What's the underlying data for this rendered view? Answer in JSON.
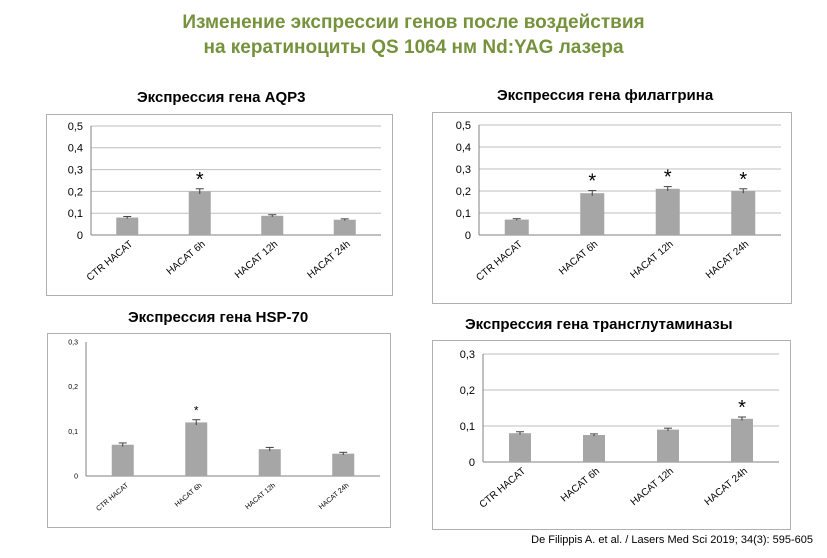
{
  "title_line1": "Изменение экспрессии генов после воздействия",
  "title_line2": "на кератиноциты QS 1064 нм Nd:YAG лазера",
  "citation": "De Filippis A. et al. / Lasers Med Sci 2019; 34(3): 595-605",
  "colors": {
    "title": "#76923c",
    "bar": "#a6a6a6",
    "grid": "#bfbfbf"
  },
  "chart_data": [
    {
      "type": "bar",
      "title": "Экспрессия гена AQP3",
      "categories": [
        "CTR HACAT",
        "HACAT 6h",
        "HACAT 12h",
        "HACAT 24h"
      ],
      "values": [
        0.08,
        0.2,
        0.088,
        0.07
      ],
      "errors": [
        0.005,
        0.012,
        0.005,
        0.004
      ],
      "significance": [
        "",
        "*",
        "",
        ""
      ],
      "yticks": [
        "0",
        "0,1",
        "0,2",
        "0,3",
        "0,4",
        "0,5"
      ],
      "ylim": [
        0,
        0.5
      ],
      "grid": true,
      "xlabel": "",
      "ylabel": ""
    },
    {
      "type": "bar",
      "title": "Экспрессия гена филаггрина",
      "categories": [
        "CTR HACAT",
        "HACAT 6h",
        "HACAT 12h",
        "HACAT 24h"
      ],
      "values": [
        0.07,
        0.19,
        0.21,
        0.2
      ],
      "errors": [
        0.004,
        0.012,
        0.01,
        0.01
      ],
      "significance": [
        "",
        "*",
        "*",
        "*"
      ],
      "yticks": [
        "0",
        "0,1",
        "0,2",
        "0,3",
        "0,4",
        "0,5"
      ],
      "ylim": [
        0,
        0.5
      ],
      "grid": true,
      "xlabel": "",
      "ylabel": ""
    },
    {
      "type": "bar",
      "title": "Экспрессия гена HSP-70",
      "categories": [
        "CTR HACAT",
        "HACAT 6h",
        "HACAT 12h",
        "HACAT 24h"
      ],
      "values": [
        0.07,
        0.12,
        0.06,
        0.05
      ],
      "errors": [
        0.004,
        0.006,
        0.004,
        0.003
      ],
      "significance": [
        "",
        "*",
        "",
        ""
      ],
      "yticks": [
        "0",
        "0,1",
        "0,2",
        "0,3"
      ],
      "ylim": [
        0,
        0.3
      ],
      "grid": false,
      "xlabel": "",
      "ylabel": ""
    },
    {
      "type": "bar",
      "title": "Экспрессия гена трансглутаминазы",
      "categories": [
        "CTR HACAT",
        "HACAT 6h",
        "HACAT 12h",
        "HACAT 24h"
      ],
      "values": [
        0.08,
        0.075,
        0.09,
        0.12
      ],
      "errors": [
        0.004,
        0.003,
        0.004,
        0.005
      ],
      "significance": [
        "",
        "",
        "",
        "*"
      ],
      "yticks": [
        "0",
        "0,1",
        "0,2",
        "0,3"
      ],
      "ylim": [
        0,
        0.3
      ],
      "grid": true,
      "xlabel": "",
      "ylabel": ""
    }
  ]
}
